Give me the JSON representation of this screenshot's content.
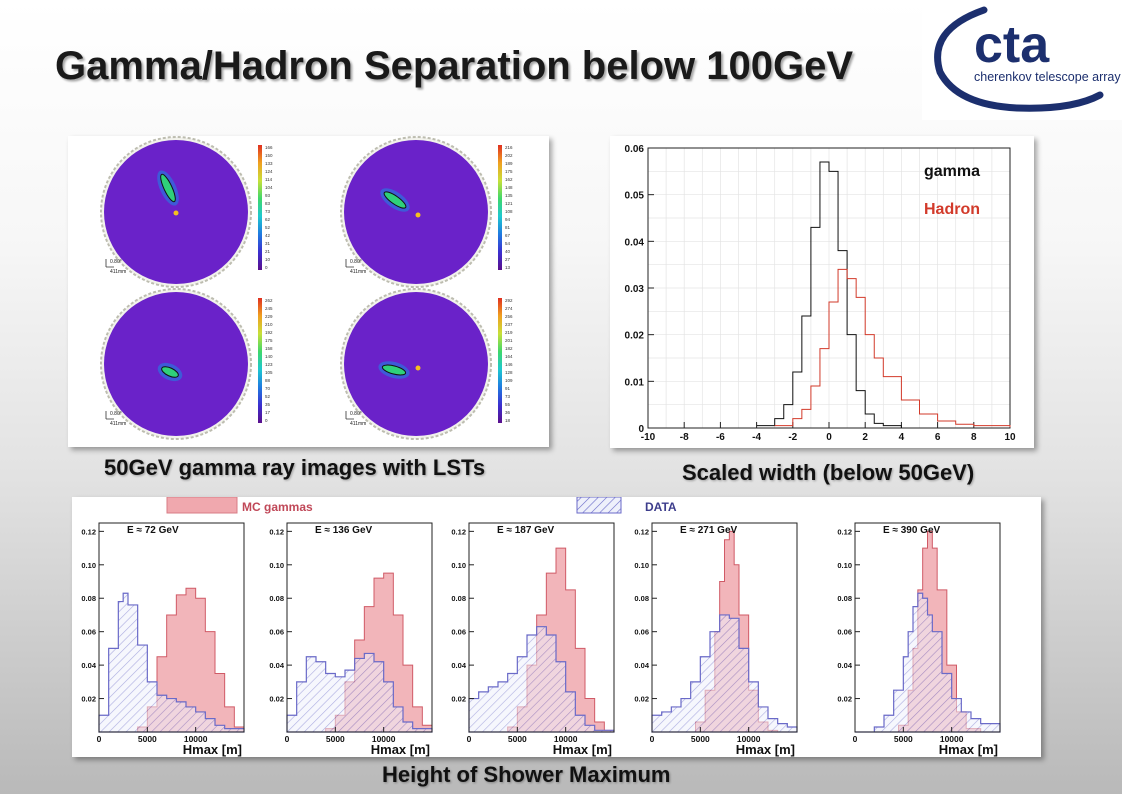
{
  "title": "Gamma/Hadron Separation below 100GeV",
  "logo": {
    "text": "cta",
    "subtitle": "cherenkov telescope array"
  },
  "images_panel": {
    "caption": "50GeV gamma ray images with LSTs",
    "scale_label_angle": "0.80°",
    "scale_label_length": "411mm",
    "colorbar_ticks": [
      [
        "166",
        "150",
        "133",
        "124",
        "114",
        "104",
        "93",
        "83",
        "73",
        "62",
        "52",
        "42",
        "31",
        "21",
        "10",
        "0"
      ],
      [
        "216",
        "202",
        "189",
        "175",
        "162",
        "148",
        "135",
        "121",
        "108",
        "94",
        "81",
        "67",
        "54",
        "40",
        "27",
        "13"
      ],
      [
        "262",
        "245",
        "229",
        "210",
        "192",
        "175",
        "158",
        "140",
        "123",
        "105",
        "88",
        "70",
        "52",
        "35",
        "17",
        "0"
      ],
      [
        "292",
        "274",
        "256",
        "237",
        "219",
        "201",
        "182",
        "164",
        "146",
        "128",
        "109",
        "91",
        "73",
        "55",
        "36",
        "18"
      ]
    ]
  },
  "width_chart": {
    "caption": "Scaled width (below 50GeV)",
    "chart_data": {
      "type": "line",
      "title": "",
      "xlabel": "",
      "ylabel": "",
      "xlim": [
        -10,
        10
      ],
      "ylim": [
        0,
        0.06
      ],
      "x_ticks": [
        "-10",
        "-8",
        "-6",
        "-4",
        "-2",
        "0",
        "2",
        "4",
        "6",
        "8",
        "10"
      ],
      "y_ticks": [
        "0",
        "0.01",
        "0.02",
        "0.03",
        "0.04",
        "0.05",
        "0.06"
      ],
      "grid": true,
      "legend_position": "top-right",
      "series": [
        {
          "name": "gamma",
          "color": "#111111",
          "x": [
            -4,
            -3,
            -2.5,
            -2,
            -1.5,
            -1,
            -0.5,
            0,
            0.5,
            1,
            1.5,
            2,
            2.5,
            3,
            4
          ],
          "y": [
            0.0005,
            0.002,
            0.005,
            0.012,
            0.024,
            0.043,
            0.057,
            0.055,
            0.038,
            0.02,
            0.008,
            0.003,
            0.001,
            0.0005,
            0
          ]
        },
        {
          "name": "Hadron",
          "color": "#d23a2a",
          "x": [
            -3,
            -2,
            -1.5,
            -1,
            -0.5,
            0,
            0.5,
            1,
            1.5,
            2,
            2.5,
            3,
            4,
            5,
            6,
            7,
            8,
            10
          ],
          "y": [
            0.0005,
            0.002,
            0.004,
            0.009,
            0.017,
            0.027,
            0.034,
            0.032,
            0.028,
            0.02,
            0.015,
            0.011,
            0.006,
            0.003,
            0.0015,
            0.0008,
            0.0005,
            0.0002
          ]
        }
      ]
    }
  },
  "hmax_panel": {
    "caption": "Height of Shower Maximum",
    "legend": {
      "mc": "MC gammas",
      "data": "DATA",
      "mc_color": "#f0a8ae",
      "data_color": "#6a6ac8"
    },
    "chart_data": [
      {
        "type": "area",
        "title": "E ≈ 72 GeV",
        "xlabel": "Hmax [m]",
        "ylabel": "",
        "xlim": [
          0,
          15000
        ],
        "ylim": [
          0,
          0.125
        ],
        "x_ticks": [
          "0",
          "5000",
          "10000"
        ],
        "y_ticks": [
          "0.02",
          "0.04",
          "0.06",
          "0.08",
          "0.10",
          "0.12"
        ],
        "series": [
          {
            "name": "MC gammas",
            "x": [
              0,
              2000,
              4000,
              5000,
              6000,
              7000,
              8000,
              9000,
              10000,
              11000,
              12000,
              13000,
              14000,
              15000
            ],
            "y": [
              0,
              0,
              0.003,
              0.015,
              0.045,
              0.07,
              0.082,
              0.086,
              0.08,
              0.06,
              0.035,
              0.015,
              0.003,
              0
            ]
          },
          {
            "name": "DATA",
            "x": [
              0,
              1000,
              2000,
              2500,
              3000,
              4000,
              5000,
              6000,
              7000,
              8000,
              9000,
              10000,
              11000,
              12000,
              13000,
              15000
            ],
            "y": [
              0.01,
              0.05,
              0.078,
              0.083,
              0.076,
              0.052,
              0.03,
              0.022,
              0.02,
              0.018,
              0.015,
              0.012,
              0.008,
              0.004,
              0.002,
              0
            ]
          }
        ]
      },
      {
        "type": "area",
        "title": "E ≈ 136 GeV",
        "xlabel": "Hmax [m]",
        "ylabel": "",
        "xlim": [
          0,
          15000
        ],
        "ylim": [
          0,
          0.125
        ],
        "x_ticks": [
          "0",
          "5000",
          "10000"
        ],
        "y_ticks": [
          "0.02",
          "0.04",
          "0.06",
          "0.08",
          "0.10",
          "0.12"
        ],
        "series": [
          {
            "name": "MC gammas",
            "x": [
              0,
              3000,
              4000,
              5000,
              6000,
              7000,
              8000,
              9000,
              10000,
              11000,
              12000,
              13000,
              14000,
              15000
            ],
            "y": [
              0,
              0,
              0.002,
              0.01,
              0.03,
              0.055,
              0.075,
              0.092,
              0.095,
              0.07,
              0.04,
              0.015,
              0.004,
              0
            ]
          },
          {
            "name": "DATA",
            "x": [
              0,
              1000,
              2000,
              3000,
              4000,
              5000,
              6000,
              7000,
              8000,
              9000,
              10000,
              11000,
              12000,
              13000,
              15000
            ],
            "y": [
              0.01,
              0.03,
              0.045,
              0.042,
              0.035,
              0.033,
              0.037,
              0.044,
              0.047,
              0.042,
              0.03,
              0.015,
              0.006,
              0.002,
              0
            ]
          }
        ]
      },
      {
        "type": "area",
        "title": "E ≈ 187 GeV",
        "xlabel": "Hmax [m]",
        "ylabel": "",
        "xlim": [
          0,
          15000
        ],
        "ylim": [
          0,
          0.125
        ],
        "x_ticks": [
          "0",
          "5000",
          "10000"
        ],
        "y_ticks": [
          "0.02",
          "0.04",
          "0.06",
          "0.08",
          "0.10",
          "0.12"
        ],
        "series": [
          {
            "name": "MC gammas",
            "x": [
              0,
              3000,
              4000,
              5000,
              6000,
              7000,
              8000,
              9000,
              10000,
              11000,
              12000,
              13000,
              14000,
              15000
            ],
            "y": [
              0,
              0,
              0.003,
              0.015,
              0.04,
              0.07,
              0.095,
              0.11,
              0.085,
              0.05,
              0.02,
              0.006,
              0.001,
              0
            ]
          },
          {
            "name": "DATA",
            "x": [
              0,
              1000,
              2000,
              3000,
              4000,
              5000,
              6000,
              7000,
              8000,
              9000,
              10000,
              11000,
              12000,
              13000,
              15000
            ],
            "y": [
              0.02,
              0.024,
              0.027,
              0.03,
              0.035,
              0.045,
              0.058,
              0.063,
              0.058,
              0.042,
              0.024,
              0.01,
              0.004,
              0.001,
              0
            ]
          }
        ]
      },
      {
        "type": "area",
        "title": "E ≈ 271 GeV",
        "xlabel": "Hmax [m]",
        "ylabel": "",
        "xlim": [
          0,
          15000
        ],
        "ylim": [
          0,
          0.125
        ],
        "x_ticks": [
          "0",
          "5000",
          "10000"
        ],
        "y_ticks": [
          "0.02",
          "0.04",
          "0.06",
          "0.08",
          "0.10",
          "0.12"
        ],
        "series": [
          {
            "name": "MC gammas",
            "x": [
              0,
              3500,
              4500,
              5500,
              6500,
              7000,
              7500,
              8000,
              8500,
              9000,
              10000,
              11000,
              12000,
              13000,
              15000
            ],
            "y": [
              0,
              0,
              0.006,
              0.025,
              0.06,
              0.09,
              0.115,
              0.12,
              0.1,
              0.07,
              0.025,
              0.006,
              0.001,
              0,
              0
            ]
          },
          {
            "name": "DATA",
            "x": [
              0,
              1000,
              2000,
              3000,
              4000,
              5000,
              6000,
              7000,
              8000,
              9000,
              10000,
              11000,
              12000,
              13000,
              14000,
              15000
            ],
            "y": [
              0.01,
              0.012,
              0.015,
              0.02,
              0.03,
              0.045,
              0.06,
              0.07,
              0.068,
              0.05,
              0.03,
              0.015,
              0.008,
              0.005,
              0.003,
              0.002
            ]
          }
        ]
      },
      {
        "type": "area",
        "title": "E ≈ 390 GeV",
        "xlabel": "Hmax [m]",
        "ylabel": "",
        "xlim": [
          0,
          15000
        ],
        "ylim": [
          0,
          0.125
        ],
        "x_ticks": [
          "0",
          "5000",
          "10000"
        ],
        "y_ticks": [
          "0.02",
          "0.04",
          "0.06",
          "0.08",
          "0.10",
          "0.12"
        ],
        "series": [
          {
            "name": "MC gammas",
            "x": [
              0,
              3500,
              4500,
              5500,
              6000,
              6500,
              7000,
              7500,
              8000,
              8500,
              9500,
              10500,
              11500,
              13000,
              15000
            ],
            "y": [
              0,
              0,
              0.004,
              0.025,
              0.05,
              0.085,
              0.11,
              0.12,
              0.11,
              0.085,
              0.04,
              0.012,
              0.002,
              0,
              0
            ]
          },
          {
            "name": "DATA",
            "x": [
              0,
              2000,
              3000,
              4000,
              5000,
              5500,
              6000,
              6500,
              7000,
              7500,
              8000,
              9000,
              10000,
              11000,
              12000,
              13000,
              15000
            ],
            "y": [
              0,
              0.003,
              0.01,
              0.025,
              0.045,
              0.06,
              0.075,
              0.083,
              0.08,
              0.07,
              0.06,
              0.035,
              0.02,
              0.012,
              0.008,
              0.005,
              0.002
            ]
          }
        ]
      }
    ]
  }
}
